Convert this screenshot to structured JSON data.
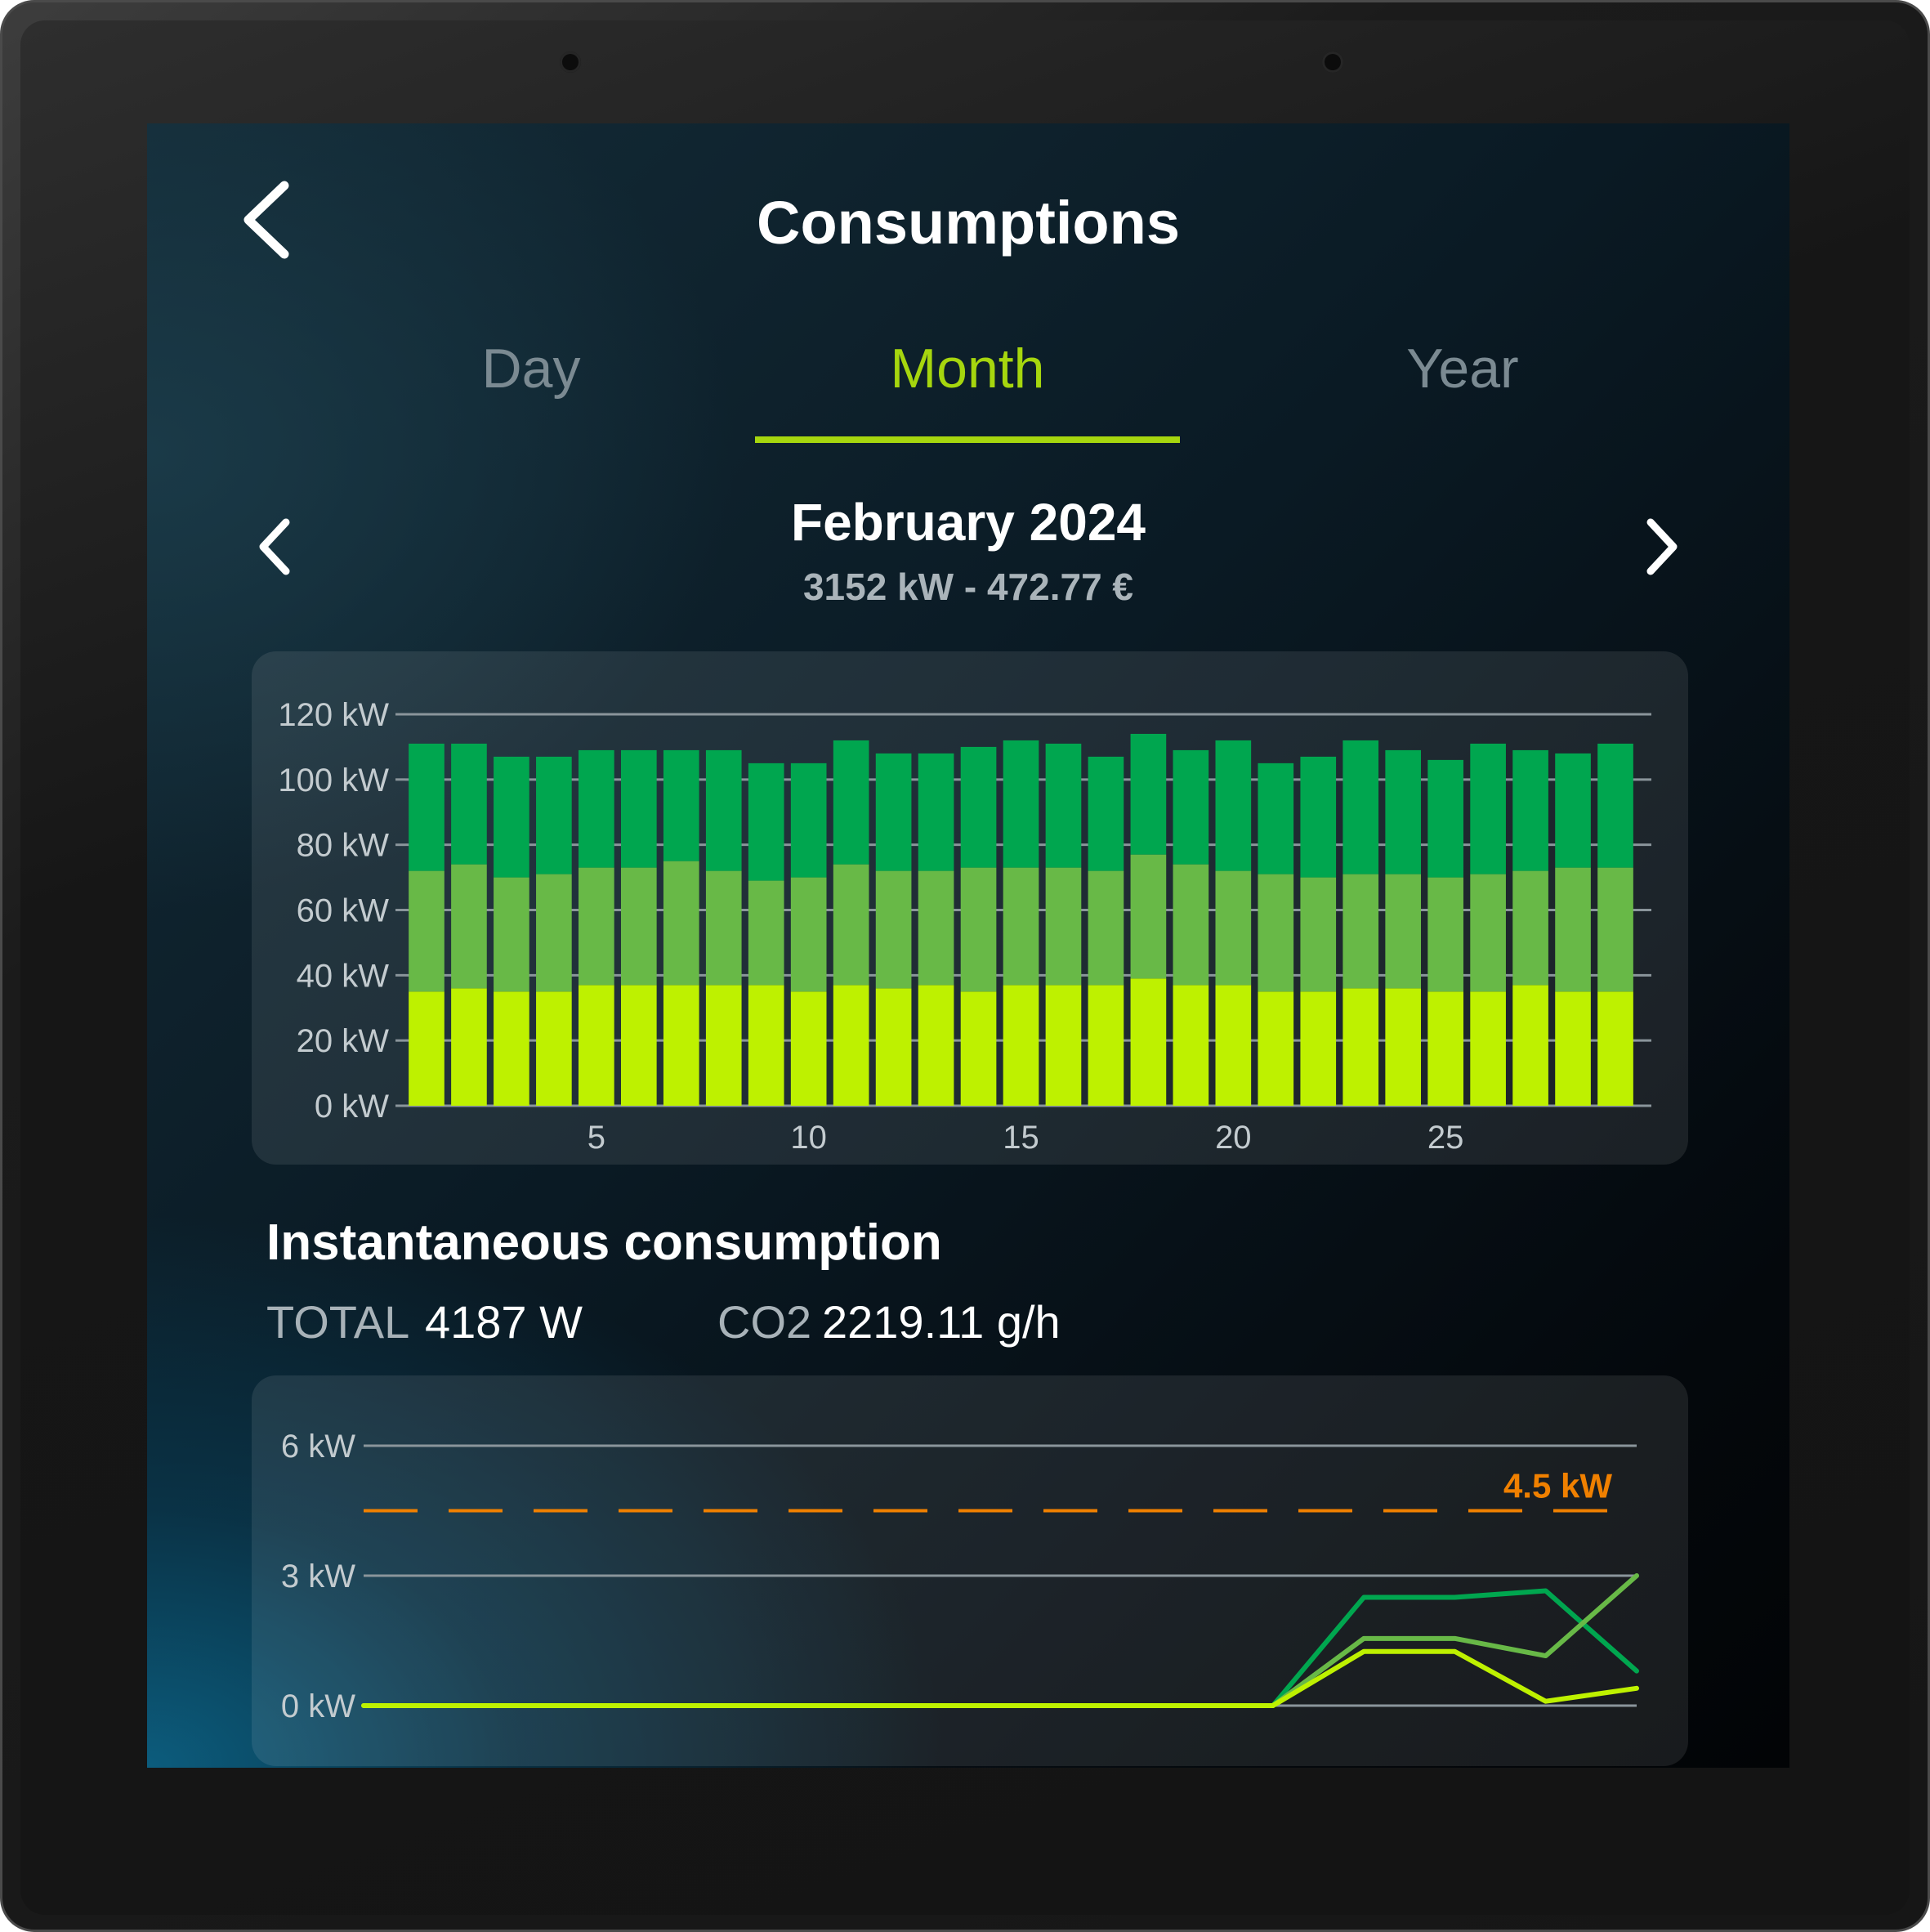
{
  "header": {
    "title": "Consumptions",
    "back_icon": "chevron-left-icon"
  },
  "tabs": [
    {
      "label": "Day",
      "active": false
    },
    {
      "label": "Month",
      "active": true
    },
    {
      "label": "Year",
      "active": false
    }
  ],
  "period": {
    "title": "February 2024",
    "summary": "3152 kW - 472.77 €",
    "prev_icon": "chevron-left-icon",
    "next_icon": "chevron-right-icon"
  },
  "colors": {
    "accent": "#a6d60e",
    "series_base": "#bef100",
    "series_mid": "#68b947",
    "series_top": "#00a64f",
    "threshold": "#f08000"
  },
  "chart_data": [
    {
      "type": "bar",
      "stacked": true,
      "y_unit": "kW",
      "ylim": [
        0,
        120
      ],
      "yticks": [
        0,
        20,
        40,
        60,
        80,
        100,
        120
      ],
      "ytick_labels": [
        "0 kW",
        "20 kW",
        "40 kW",
        "60 kW",
        "80 kW",
        "100 kW",
        "120 kW"
      ],
      "xticks": [
        5,
        10,
        15,
        20,
        25
      ],
      "categories": [
        1,
        2,
        3,
        4,
        5,
        6,
        7,
        8,
        9,
        10,
        11,
        12,
        13,
        14,
        15,
        16,
        17,
        18,
        19,
        20,
        21,
        22,
        23,
        24,
        25,
        26,
        27,
        28,
        29
      ],
      "series": [
        {
          "color": "#bef100",
          "values": [
            35,
            36,
            35,
            35,
            37,
            37,
            37,
            37,
            37,
            35,
            37,
            36,
            37,
            35,
            37,
            37,
            37,
            39,
            37,
            37,
            35,
            35,
            36,
            36,
            35,
            35,
            37,
            35,
            35
          ]
        },
        {
          "color": "#68b947",
          "values": [
            37,
            38,
            35,
            36,
            36,
            36,
            38,
            35,
            32,
            35,
            37,
            36,
            35,
            38,
            36,
            36,
            35,
            38,
            37,
            35,
            36,
            35,
            35,
            35,
            35,
            36,
            35,
            38,
            38
          ]
        },
        {
          "color": "#00a64f",
          "values": [
            39,
            37,
            37,
            36,
            36,
            36,
            34,
            37,
            36,
            35,
            38,
            36,
            36,
            37,
            39,
            38,
            35,
            37,
            35,
            40,
            34,
            37,
            41,
            38,
            36,
            40,
            37,
            35,
            38
          ]
        }
      ],
      "grid": true
    },
    {
      "type": "line",
      "y_unit": "kW",
      "ylim": [
        0,
        6
      ],
      "yticks": [
        0,
        3,
        6
      ],
      "ytick_labels": [
        "0 kW",
        "3 kW",
        "6 kW"
      ],
      "threshold": {
        "value": 4.5,
        "label": "4.5 kW",
        "style": "dashed"
      },
      "x": [
        0,
        1,
        2,
        3,
        4,
        5,
        6,
        7,
        8,
        9,
        10,
        11,
        12,
        13,
        14
      ],
      "series": [
        {
          "color": "#00a64f",
          "values": [
            0,
            0,
            0,
            0,
            0,
            0,
            0,
            0,
            0,
            0,
            0,
            2.5,
            2.5,
            2.65,
            0.8
          ]
        },
        {
          "color": "#68b947",
          "values": [
            0,
            0,
            0,
            0,
            0,
            0,
            0,
            0,
            0,
            0,
            0,
            1.55,
            1.55,
            1.15,
            3.0
          ]
        },
        {
          "color": "#bef100",
          "values": [
            0,
            0,
            0,
            0,
            0,
            0,
            0,
            0,
            0,
            0,
            0,
            1.25,
            1.25,
            0.1,
            0.4
          ]
        }
      ],
      "grid": true
    }
  ],
  "instant": {
    "title": "Instantaneous consumption",
    "total_label": "TOTAL",
    "total_value": "4187 W",
    "co2_label": "CO2",
    "co2_value": "2219.11 g/h"
  }
}
